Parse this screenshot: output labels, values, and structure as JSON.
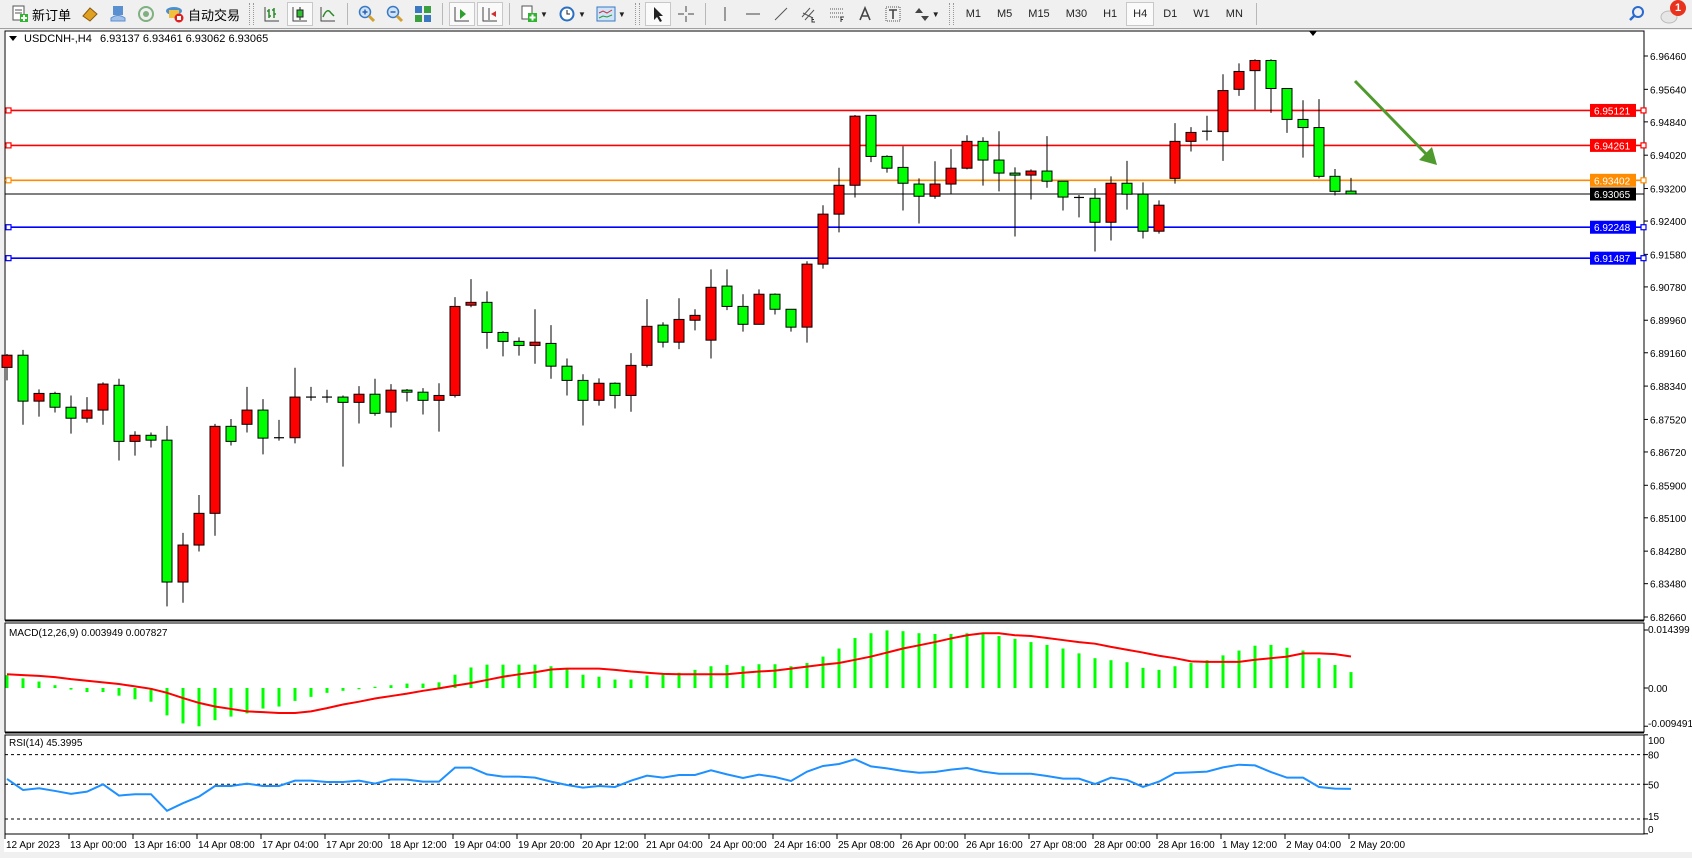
{
  "toolbar": {
    "new_order_label": "新订单",
    "auto_trading_label": "自动交易",
    "timeframes": [
      "M1",
      "M5",
      "M15",
      "M30",
      "H1",
      "H4",
      "D1",
      "W1",
      "MN"
    ],
    "active_timeframe": "H4",
    "notification_count": "1"
  },
  "chart": {
    "symbol_label": "USDCNH-,H4",
    "ohlc_label": "6.93137 6.93461 6.93062 6.93065",
    "macd_label": "MACD(12,26,9) 0.003949 0.007827",
    "rsi_label": "RSI(14) 45.3995"
  },
  "chart_data": {
    "type": "candlestick",
    "symbol": "USDCNH-",
    "timeframe": "H4",
    "candle_colors": {
      "up": "#ff0000",
      "down": "#00ff00",
      "outline": "#000000"
    },
    "ylim": [
      6.8266,
      6.9646
    ],
    "price_ticks": [
      "6.96460",
      "6.95640",
      "6.94840",
      "6.94020",
      "6.93200",
      "6.92400",
      "6.91580",
      "6.90780",
      "6.89960",
      "6.89160",
      "6.88340",
      "6.87520",
      "6.86720",
      "6.85900",
      "6.85100",
      "6.84280",
      "6.83480",
      "6.82660"
    ],
    "time_labels": [
      "12 Apr 2023",
      "13 Apr 00:00",
      "13 Apr 16:00",
      "14 Apr 08:00",
      "17 Apr 04:00",
      "17 Apr 20:00",
      "18 Apr 12:00",
      "19 Apr 04:00",
      "19 Apr 20:00",
      "20 Apr 12:00",
      "21 Apr 04:00",
      "24 Apr 00:00",
      "24 Apr 16:00",
      "25 Apr 08:00",
      "26 Apr 00:00",
      "26 Apr 16:00",
      "27 Apr 08:00",
      "28 Apr 00:00",
      "28 Apr 16:00",
      "1 May 12:00",
      "2 May 04:00",
      "2 May 20:00"
    ],
    "levels": [
      {
        "value": "6.95121",
        "color": "#ff0000"
      },
      {
        "value": "6.94261",
        "color": "#ff0000"
      },
      {
        "value": "6.93402",
        "color": "#ff8c00"
      },
      {
        "value": "6.92248",
        "color": "#0000ff"
      },
      {
        "value": "6.91487",
        "color": "#0000ff"
      }
    ],
    "current_price": "6.93065",
    "arrow_color": "#4f9a2c",
    "candles_ohlc": [
      [
        6.888,
        6.8913,
        6.8848,
        6.891
      ],
      [
        6.891,
        6.8923,
        6.8739,
        6.8797
      ],
      [
        6.8797,
        6.8826,
        6.8759,
        6.8816
      ],
      [
        6.8816,
        6.882,
        6.8769,
        6.8782
      ],
      [
        6.8782,
        6.8811,
        6.8717,
        6.8755
      ],
      [
        6.8755,
        6.8807,
        6.8744,
        6.8775
      ],
      [
        6.8775,
        6.8843,
        6.8739,
        6.8839
      ],
      [
        6.8836,
        6.8852,
        6.8651,
        6.8698
      ],
      [
        6.8698,
        6.8723,
        6.8663,
        6.8713
      ],
      [
        6.8713,
        6.872,
        6.8683,
        6.8701
      ],
      [
        6.8701,
        6.8736,
        6.8292,
        6.8352
      ],
      [
        6.8352,
        6.8473,
        6.8301,
        6.8443
      ],
      [
        6.8443,
        6.8566,
        6.8427,
        6.8521
      ],
      [
        6.8521,
        6.8741,
        6.8466,
        6.8735
      ],
      [
        6.8735,
        6.8753,
        6.8688,
        6.8698
      ],
      [
        6.874,
        6.8832,
        6.872,
        6.8775
      ],
      [
        6.8775,
        6.8802,
        6.8666,
        6.8706
      ],
      [
        6.8707,
        6.8751,
        6.87,
        6.8707
      ],
      [
        6.8707,
        6.8879,
        6.8693,
        6.8807
      ],
      [
        6.8807,
        6.8832,
        6.8798,
        6.8807
      ],
      [
        6.8807,
        6.8825,
        6.8793,
        6.8807
      ],
      [
        6.8807,
        6.8811,
        6.8636,
        6.8794
      ],
      [
        6.8794,
        6.8834,
        6.8742,
        6.8814
      ],
      [
        6.8814,
        6.8852,
        6.8761,
        6.8767
      ],
      [
        6.877,
        6.8839,
        6.8732,
        6.8824
      ],
      [
        6.8824,
        6.8827,
        6.8796,
        6.8819
      ],
      [
        6.8819,
        6.8829,
        6.8764,
        6.8799
      ],
      [
        6.8799,
        6.8841,
        6.8722,
        6.8811
      ],
      [
        6.8811,
        6.9053,
        6.8806,
        6.903
      ],
      [
        6.9033,
        6.9097,
        6.9028,
        6.904
      ],
      [
        6.904,
        6.9067,
        6.8926,
        6.8966
      ],
      [
        6.8966,
        6.8969,
        6.8907,
        6.8944
      ],
      [
        6.8944,
        6.8954,
        6.8909,
        6.8934
      ],
      [
        6.8934,
        6.9023,
        6.8889,
        6.8942
      ],
      [
        6.8939,
        6.8984,
        6.8852,
        6.8883
      ],
      [
        6.8883,
        6.8902,
        6.8811,
        6.8848
      ],
      [
        6.8848,
        6.8863,
        6.8737,
        6.8799
      ],
      [
        6.8799,
        6.8853,
        6.8786,
        6.8841
      ],
      [
        6.8841,
        6.8843,
        6.8779,
        6.8811
      ],
      [
        6.8811,
        6.8915,
        6.8771,
        6.8885
      ],
      [
        6.8885,
        6.9048,
        6.888,
        6.8981
      ],
      [
        6.8984,
        6.8991,
        6.8929,
        6.8942
      ],
      [
        6.8942,
        6.905,
        6.8925,
        6.8998
      ],
      [
        6.8996,
        6.9023,
        6.8971,
        6.9008
      ],
      [
        6.8947,
        6.9121,
        6.8902,
        6.9077
      ],
      [
        6.908,
        6.9121,
        6.9021,
        6.903
      ],
      [
        6.903,
        6.906,
        6.8968,
        6.8986
      ],
      [
        6.8986,
        6.9072,
        6.8986,
        6.906
      ],
      [
        6.906,
        6.9062,
        6.901,
        6.9023
      ],
      [
        6.9023,
        6.9023,
        6.8968,
        6.8979
      ],
      [
        6.8979,
        6.9141,
        6.8941,
        6.9134
      ],
      [
        6.9134,
        6.9279,
        6.9123,
        6.9257
      ],
      [
        6.9257,
        6.9371,
        6.9212,
        6.9328
      ],
      [
        6.9328,
        6.9501,
        6.9298,
        6.9498
      ],
      [
        6.95,
        6.95,
        6.9385,
        6.9399
      ],
      [
        6.9399,
        6.9402,
        6.9359,
        6.937
      ],
      [
        6.9372,
        6.9424,
        6.9266,
        6.9333
      ],
      [
        6.9331,
        6.9345,
        6.9234,
        6.9301
      ],
      [
        6.9301,
        6.9387,
        6.9295,
        6.9331
      ],
      [
        6.9331,
        6.9417,
        6.9306,
        6.937
      ],
      [
        6.937,
        6.9451,
        6.9367,
        6.9436
      ],
      [
        6.9436,
        6.9446,
        6.9327,
        6.939
      ],
      [
        6.939,
        6.9461,
        6.9313,
        6.9358
      ],
      [
        6.9358,
        6.9372,
        6.9202,
        6.9353
      ],
      [
        6.9353,
        6.9367,
        6.9293,
        6.9363
      ],
      [
        6.9363,
        6.9449,
        6.9322,
        6.9338
      ],
      [
        6.9338,
        6.9338,
        6.9266,
        6.9299
      ],
      [
        6.9298,
        6.9304,
        6.9249,
        6.9298
      ],
      [
        6.9296,
        6.9321,
        6.9165,
        6.9237
      ],
      [
        6.9237,
        6.935,
        6.9192,
        6.9333
      ],
      [
        6.9333,
        6.9388,
        6.9268,
        6.9306
      ],
      [
        6.9306,
        6.9335,
        6.9197,
        6.9215
      ],
      [
        6.9215,
        6.9291,
        6.9209,
        6.9279
      ],
      [
        6.9345,
        6.9481,
        6.9332,
        6.9436
      ],
      [
        6.9436,
        6.9471,
        6.9411,
        6.9458
      ],
      [
        6.9461,
        6.9499,
        6.9438,
        6.9461
      ],
      [
        6.946,
        6.9601,
        6.9388,
        6.9561
      ],
      [
        6.9564,
        6.9628,
        6.9548,
        6.9608
      ],
      [
        6.961,
        6.9638,
        6.9514,
        6.9635
      ],
      [
        6.9635,
        6.9638,
        6.9506,
        6.9566
      ],
      [
        6.9566,
        6.9566,
        6.9457,
        6.949
      ],
      [
        6.949,
        6.9537,
        6.9396,
        6.947
      ],
      [
        6.947,
        6.954,
        6.9345,
        6.935
      ],
      [
        6.935,
        6.9368,
        6.9303,
        6.9313
      ],
      [
        6.93137,
        6.93461,
        6.93062,
        6.93065
      ]
    ],
    "macd": {
      "params": "12,26,9",
      "ylim": [
        -0.009491,
        0.014399
      ],
      "ticks": [
        "0.014399",
        "0.00",
        "-0.009491"
      ],
      "histogram_color": "#00ff00",
      "signal_color": "#ff0000",
      "histogram": [
        0.0032,
        0.0024,
        0.0016,
        0.0007,
        -0.0004,
        -0.001,
        -0.001,
        -0.0019,
        -0.0028,
        -0.0034,
        -0.0068,
        -0.0088,
        -0.0095,
        -0.008,
        -0.0071,
        -0.0063,
        -0.0051,
        -0.0046,
        -0.0032,
        -0.0022,
        -0.0012,
        -0.0007,
        -0.0003,
        0.0003,
        0.0007,
        0.0011,
        0.0011,
        0.0014,
        0.0033,
        0.0051,
        0.0058,
        0.0058,
        0.0058,
        0.0058,
        0.0054,
        0.0048,
        0.0033,
        0.0028,
        0.0021,
        0.0021,
        0.0031,
        0.0033,
        0.0038,
        0.0045,
        0.0054,
        0.0057,
        0.0054,
        0.0059,
        0.0059,
        0.0054,
        0.0062,
        0.0078,
        0.0098,
        0.0124,
        0.0136,
        0.0143,
        0.0141,
        0.0136,
        0.0134,
        0.0134,
        0.0136,
        0.0134,
        0.0129,
        0.0122,
        0.0114,
        0.0107,
        0.0098,
        0.0086,
        0.0074,
        0.0069,
        0.0064,
        0.005,
        0.0045,
        0.0054,
        0.0062,
        0.0069,
        0.0081,
        0.0093,
        0.0105,
        0.0107,
        0.01,
        0.0093,
        0.0074,
        0.0057,
        0.003949
      ],
      "signal": [
        0.0034,
        0.0032,
        0.003,
        0.0027,
        0.0022,
        0.0018,
        0.0014,
        0.001,
        0.0004,
        -0.0002,
        -0.0012,
        -0.0025,
        -0.0037,
        -0.0046,
        -0.0052,
        -0.0058,
        -0.006,
        -0.0062,
        -0.0062,
        -0.0058,
        -0.005,
        -0.0041,
        -0.0034,
        -0.0026,
        -0.002,
        -0.0014,
        -0.0007,
        -0.0001,
        0.0006,
        0.0012,
        0.002,
        0.0028,
        0.0034,
        0.0039,
        0.0046,
        0.0048,
        0.0048,
        0.0048,
        0.0045,
        0.0041,
        0.0038,
        0.0035,
        0.0034,
        0.0034,
        0.0034,
        0.0034,
        0.0038,
        0.0041,
        0.0043,
        0.0048,
        0.0053,
        0.0058,
        0.0062,
        0.007,
        0.0078,
        0.0088,
        0.0098,
        0.0106,
        0.0114,
        0.0123,
        0.0131,
        0.0136,
        0.0136,
        0.0131,
        0.0129,
        0.0124,
        0.0119,
        0.0114,
        0.011,
        0.0102,
        0.0095,
        0.0088,
        0.008,
        0.0074,
        0.0066,
        0.0065,
        0.0065,
        0.0065,
        0.007,
        0.0074,
        0.0078,
        0.0086,
        0.0086,
        0.0084,
        0.007827
      ]
    },
    "rsi": {
      "period": 14,
      "ylim": [
        0,
        100
      ],
      "ticks": [
        "100",
        "80",
        "50",
        "15",
        "0"
      ],
      "levels": [
        80,
        50,
        15
      ],
      "color": "#1e90ff",
      "values": [
        55.4,
        44.3,
        46,
        43.3,
        40.3,
        42.6,
        50,
        38.6,
        40,
        40,
        23.2,
        30.9,
        37.6,
        48.3,
        48.3,
        50.7,
        48.3,
        48.3,
        53.7,
        53.7,
        52.3,
        52.3,
        53.7,
        50.7,
        55,
        54.7,
        52.7,
        52.7,
        66.8,
        66.8,
        60,
        57.7,
        57.7,
        56.7,
        52.7,
        49.3,
        46.6,
        48.3,
        47.3,
        53.7,
        58.7,
        56.7,
        59.4,
        59.4,
        64.1,
        60,
        56.4,
        59.7,
        57.4,
        53.4,
        62.8,
        68.5,
        70.5,
        75.2,
        68.1,
        66.1,
        63.4,
        61.7,
        62.4,
        64.8,
        66.4,
        62.8,
        60.7,
        60.7,
        60.7,
        58.4,
        55.7,
        55.7,
        50.3,
        56.7,
        54.4,
        47.3,
        52.7,
        61.4,
        62.1,
        62.8,
        67.1,
        69.8,
        69.1,
        62.4,
        56.7,
        56.7,
        47.3,
        45.6,
        45.3995
      ]
    }
  }
}
